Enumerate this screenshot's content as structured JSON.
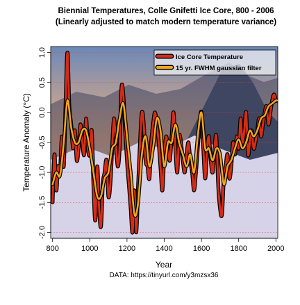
{
  "colors": {
    "background": "#ffffff",
    "axis": "#000000",
    "grid": "#ff3b2f",
    "ice_core_line_fill": "#d62c16",
    "ice_core_line_stroke": "#000000",
    "filter_line_fill": "#f2a51d",
    "filter_line_stroke": "#000000",
    "sky_top": "#6b88b8",
    "sky_horizon": "#f0b07e",
    "mountain_dark": "#3f4662",
    "snow": "#d6d2e8"
  },
  "chart_data": {
    "type": "line",
    "title": "Biennial Temperatures, Colle Gnifetti Ice Core, 800 - 2006",
    "subtitle": "(Linearly adjusted to match modern temperature variance)",
    "xlabel": "Year",
    "ylabel": "Temperature Anomaly (°C)",
    "caption": "DATA: https://tinyurl.com/y3mzsx36",
    "xlim": [
      790,
      2010
    ],
    "ylim": [
      -2.1,
      1.1
    ],
    "xticks": [
      800,
      1000,
      1200,
      1400,
      1600,
      1800,
      2000
    ],
    "yticks": [
      -2.0,
      -1.5,
      -1.0,
      -0.5,
      0.0,
      0.5,
      1.0
    ],
    "ytick_labels": [
      "-2.0",
      "-1.5",
      "-1.0",
      "-0.5",
      "0.0",
      "0.5",
      "1.0"
    ],
    "grid": "horizontal dashed at y ticks",
    "legend_position": "top-right",
    "series": [
      {
        "name": "Ice Core Temperature",
        "x": [
          800,
          810,
          820,
          830,
          840,
          850,
          860,
          870,
          880,
          890,
          900,
          910,
          920,
          930,
          940,
          950,
          960,
          970,
          980,
          990,
          1000,
          1010,
          1020,
          1030,
          1040,
          1050,
          1060,
          1070,
          1080,
          1090,
          1100,
          1110,
          1120,
          1130,
          1140,
          1150,
          1160,
          1170,
          1180,
          1190,
          1200,
          1210,
          1220,
          1230,
          1240,
          1250,
          1260,
          1270,
          1280,
          1290,
          1300,
          1310,
          1320,
          1330,
          1340,
          1350,
          1360,
          1370,
          1380,
          1390,
          1400,
          1410,
          1420,
          1430,
          1440,
          1450,
          1460,
          1470,
          1480,
          1490,
          1500,
          1510,
          1520,
          1530,
          1540,
          1550,
          1560,
          1570,
          1580,
          1590,
          1600,
          1610,
          1620,
          1630,
          1640,
          1650,
          1660,
          1670,
          1680,
          1690,
          1700,
          1710,
          1720,
          1730,
          1740,
          1750,
          1760,
          1770,
          1780,
          1790,
          1800,
          1810,
          1820,
          1830,
          1840,
          1850,
          1860,
          1870,
          1880,
          1890,
          1900,
          1910,
          1920,
          1930,
          1940,
          1950,
          1960,
          1970,
          1980,
          1990,
          2000,
          2006
        ],
        "values": [
          -1.5,
          -0.7,
          -1.3,
          -0.9,
          -1.0,
          -0.4,
          -0.9,
          0.1,
          1.0,
          0.1,
          -0.2,
          -0.6,
          -0.3,
          -0.8,
          -0.6,
          -0.2,
          -0.5,
          -0.7,
          -0.1,
          -0.6,
          -0.7,
          -0.3,
          -1.2,
          -1.8,
          -0.9,
          -1.6,
          -1.9,
          -1.2,
          -1.0,
          -0.8,
          -1.4,
          -1.2,
          -0.6,
          -0.1,
          -0.5,
          -0.9,
          -0.6,
          0.4,
          0.3,
          -0.3,
          -0.8,
          -1.2,
          -1.6,
          -2.0,
          -1.3,
          -2.0,
          -1.2,
          -0.5,
          0.0,
          -0.2,
          -0.8,
          -0.9,
          -1.1,
          -0.5,
          -0.2,
          0.0,
          -0.2,
          -0.5,
          -0.9,
          -1.3,
          -0.7,
          -0.4,
          -0.6,
          -0.8,
          -0.4,
          0.0,
          -0.6,
          -1.0,
          -0.4,
          -0.5,
          -0.8,
          -1.0,
          -0.7,
          -0.5,
          -0.8,
          -1.0,
          -1.3,
          -1.0,
          -0.6,
          -0.2,
          0.0,
          -0.6,
          -1.1,
          -0.6,
          -0.4,
          -0.8,
          -1.0,
          -0.6,
          -0.4,
          -1.2,
          -1.6,
          -1.7,
          -1.1,
          -0.9,
          -0.7,
          -1.1,
          -0.9,
          -0.5,
          -0.7,
          -0.4,
          -0.6,
          -0.1,
          -0.5,
          -0.3,
          0.0,
          -0.7,
          -0.5,
          -0.3,
          -0.6,
          -0.5,
          -0.3,
          -0.1,
          -0.4,
          -0.2,
          0.0,
          0.1,
          -0.2,
          0.0,
          0.2,
          0.3,
          0.2,
          0.2
        ]
      },
      {
        "name": "15 yr. FWHM gaussian filter",
        "x": [
          800,
          820,
          840,
          860,
          880,
          900,
          920,
          940,
          960,
          980,
          1000,
          1020,
          1040,
          1060,
          1080,
          1100,
          1120,
          1140,
          1160,
          1180,
          1200,
          1220,
          1240,
          1260,
          1280,
          1300,
          1320,
          1340,
          1360,
          1380,
          1400,
          1420,
          1440,
          1460,
          1480,
          1500,
          1520,
          1540,
          1560,
          1580,
          1600,
          1620,
          1640,
          1660,
          1680,
          1700,
          1720,
          1740,
          1760,
          1780,
          1800,
          1820,
          1840,
          1860,
          1880,
          1900,
          1920,
          1940,
          1960,
          1980,
          2000,
          2006
        ],
        "values": [
          -1.2,
          -1.0,
          -1.05,
          -0.5,
          0.2,
          -0.25,
          -0.5,
          -0.5,
          -0.3,
          -0.3,
          -0.6,
          -1.0,
          -1.4,
          -1.4,
          -1.1,
          -1.0,
          -0.6,
          -0.5,
          -0.1,
          0.15,
          -0.4,
          -1.0,
          -1.7,
          -1.5,
          -0.7,
          -0.4,
          -0.9,
          -0.6,
          -0.1,
          -0.3,
          -0.9,
          -0.5,
          -0.5,
          -0.2,
          -0.5,
          -0.7,
          -0.9,
          -0.7,
          -1.0,
          -0.4,
          0.0,
          -0.6,
          -0.6,
          -0.8,
          -0.6,
          -0.7,
          -1.2,
          -0.9,
          -0.8,
          -0.6,
          -0.45,
          -0.6,
          -0.5,
          -0.3,
          -0.4,
          -0.3,
          -0.1,
          -0.05,
          0.1,
          0.15,
          0.2,
          0.2
        ]
      }
    ]
  }
}
